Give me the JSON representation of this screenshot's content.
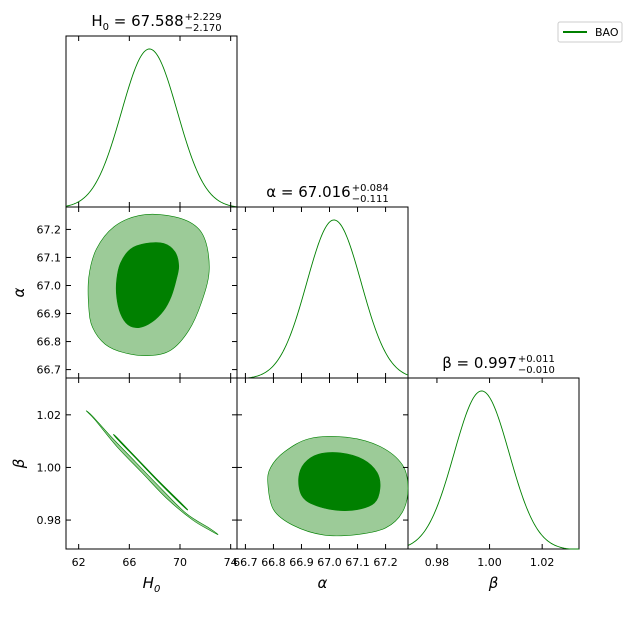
{
  "chart_data": {
    "type": "corner",
    "colors": {
      "line": "#008000",
      "inner": "#008000",
      "outer": "#9ccb98",
      "frame": "#000000"
    },
    "legend": {
      "label": "BAO",
      "position": "top-right"
    },
    "parameters": [
      {
        "id": "H0",
        "axis_label": "H",
        "axis_sub": "0",
        "title_name": "H",
        "title_sub": "0",
        "title_eq": " = 67.588",
        "err_plus": "+2.229",
        "err_minus": "−2.170",
        "range": [
          61.0,
          74.5
        ],
        "ticks": [
          62,
          66,
          70,
          74
        ],
        "tick_labels": [
          "62",
          "66",
          "70",
          "74"
        ],
        "mean": 67.588,
        "sigma": 2.2
      },
      {
        "id": "alpha",
        "axis_label": "α",
        "title_name": "α",
        "title_eq": " = 67.016",
        "err_plus": "+0.084",
        "err_minus": "−0.111",
        "range": [
          66.67,
          67.28
        ],
        "ticks": [
          66.7,
          66.8,
          66.9,
          67.0,
          67.1,
          67.2
        ],
        "tick_labels": [
          "66.7",
          "66.8",
          "66.9",
          "67.0",
          "67.1",
          "67.2"
        ],
        "mean": 67.016,
        "sigma": 0.097
      },
      {
        "id": "beta",
        "axis_label": "β",
        "title_name": "β",
        "title_eq": " = 0.997",
        "err_plus": "+0.011",
        "err_minus": "−0.010",
        "range": [
          0.969,
          1.034
        ],
        "ticks": [
          0.98,
          1.0,
          1.02
        ],
        "tick_labels": [
          "0.98",
          "1.00",
          "1.02"
        ],
        "mean": 0.997,
        "sigma": 0.0105
      }
    ],
    "pairs": [
      {
        "x": "H0",
        "y": "alpha",
        "outer": [
          [
            62.8,
            66.92
          ],
          [
            63.1,
            66.85
          ],
          [
            64.1,
            66.79
          ],
          [
            65.6,
            66.76
          ],
          [
            67.6,
            66.75
          ],
          [
            69.3,
            66.77
          ],
          [
            70.7,
            66.84
          ],
          [
            71.7,
            66.94
          ],
          [
            72.3,
            67.05
          ],
          [
            72.0,
            67.16
          ],
          [
            71.0,
            67.22
          ],
          [
            69.0,
            67.25
          ],
          [
            66.8,
            67.25
          ],
          [
            64.8,
            67.21
          ],
          [
            63.4,
            67.13
          ],
          [
            62.8,
            67.03
          ]
        ],
        "inner": [
          [
            65.0,
            66.96
          ],
          [
            65.3,
            66.9
          ],
          [
            65.9,
            66.86
          ],
          [
            66.8,
            66.85
          ],
          [
            67.8,
            66.87
          ],
          [
            68.7,
            66.91
          ],
          [
            69.3,
            66.96
          ],
          [
            69.7,
            67.02
          ],
          [
            69.9,
            67.07
          ],
          [
            69.6,
            67.12
          ],
          [
            68.7,
            67.15
          ],
          [
            67.3,
            67.15
          ],
          [
            66.1,
            67.13
          ],
          [
            65.3,
            67.08
          ],
          [
            65.0,
            67.02
          ]
        ]
      },
      {
        "x": "H0",
        "y": "beta",
        "outer": [
          [
            62.6,
            1.0215
          ],
          [
            63.3,
            1.018
          ],
          [
            65.0,
            1.008
          ],
          [
            67.0,
            0.998
          ],
          [
            69.0,
            0.988
          ],
          [
            71.0,
            0.98
          ],
          [
            72.4,
            0.976
          ],
          [
            73.0,
            0.9745
          ],
          [
            72.3,
            0.977
          ],
          [
            70.5,
            0.9825
          ],
          [
            68.5,
            0.992
          ],
          [
            66.5,
            1.002
          ],
          [
            64.5,
            1.012
          ],
          [
            63.1,
            1.0195
          ]
        ],
        "inner": [
          [
            64.9,
            1.012
          ],
          [
            66.5,
            1.004
          ],
          [
            68.3,
            0.995
          ],
          [
            70.2,
            0.986
          ],
          [
            70.6,
            0.984
          ],
          [
            70.3,
            0.985
          ],
          [
            68.4,
            0.994
          ],
          [
            66.6,
            1.003
          ],
          [
            65.0,
            1.011
          ]
        ]
      },
      {
        "x": "alpha",
        "y": "beta",
        "outer": [
          [
            66.78,
            0.994
          ],
          [
            66.8,
            0.984
          ],
          [
            66.87,
            0.978
          ],
          [
            66.98,
            0.9743
          ],
          [
            67.1,
            0.9745
          ],
          [
            67.2,
            0.977
          ],
          [
            67.26,
            0.983
          ],
          [
            67.28,
            0.992
          ],
          [
            67.26,
            1.001
          ],
          [
            67.18,
            1.008
          ],
          [
            67.06,
            1.0115
          ],
          [
            66.93,
            1.011
          ],
          [
            66.84,
            1.006
          ],
          [
            66.79,
            1.0
          ]
        ],
        "inner": [
          [
            66.89,
            0.996
          ],
          [
            66.9,
            0.9895
          ],
          [
            66.94,
            0.986
          ],
          [
            67.02,
            0.9838
          ],
          [
            67.1,
            0.984
          ],
          [
            67.16,
            0.9865
          ],
          [
            67.18,
            0.992
          ],
          [
            67.17,
            0.998
          ],
          [
            67.12,
            1.003
          ],
          [
            67.04,
            1.0055
          ],
          [
            66.96,
            1.005
          ],
          [
            66.91,
            1.0015
          ]
        ]
      }
    ]
  }
}
